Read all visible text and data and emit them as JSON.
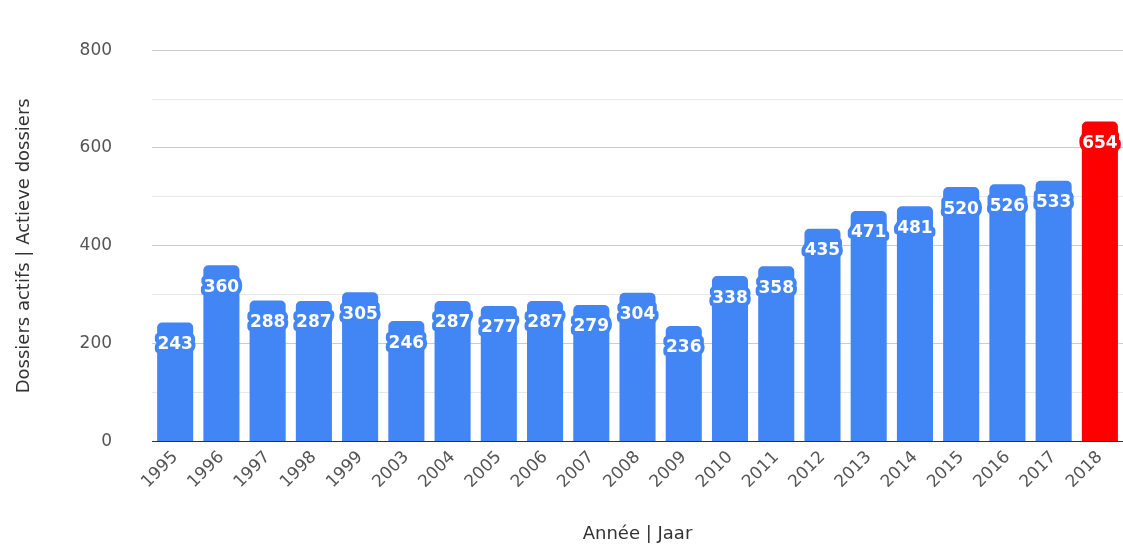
{
  "chart_data": {
    "type": "bar",
    "xlabel": "Année | Jaar",
    "ylabel": "Dossiers actifs | Actieve dossiers",
    "categories": [
      "1995",
      "1996",
      "1997",
      "1998",
      "1999",
      "2003",
      "2004",
      "2005",
      "2006",
      "2007",
      "2008",
      "2009",
      "2010",
      "2011",
      "2012",
      "2013",
      "2014",
      "2015",
      "2016",
      "2017",
      "2018"
    ],
    "values": [
      243,
      360,
      288,
      287,
      305,
      246,
      287,
      277,
      287,
      279,
      304,
      236,
      338,
      358,
      435,
      471,
      481,
      520,
      526,
      533,
      654
    ],
    "colors": [
      "#4285f4",
      "#4285f4",
      "#4285f4",
      "#4285f4",
      "#4285f4",
      "#4285f4",
      "#4285f4",
      "#4285f4",
      "#4285f4",
      "#4285f4",
      "#4285f4",
      "#4285f4",
      "#4285f4",
      "#4285f4",
      "#4285f4",
      "#4285f4",
      "#4285f4",
      "#4285f4",
      "#4285f4",
      "#4285f4",
      "#ff0000"
    ],
    "ylim": [
      0,
      800
    ],
    "yticks": [
      0,
      {
        "value": 100,
        "label": null
      },
      200,
      {
        "value": 300,
        "label": null
      },
      400,
      {
        "value": 500,
        "label": null
      },
      600,
      {
        "value": 700,
        "label": null
      },
      800
    ],
    "grid": "y",
    "data_labels": true,
    "legend": false
  }
}
